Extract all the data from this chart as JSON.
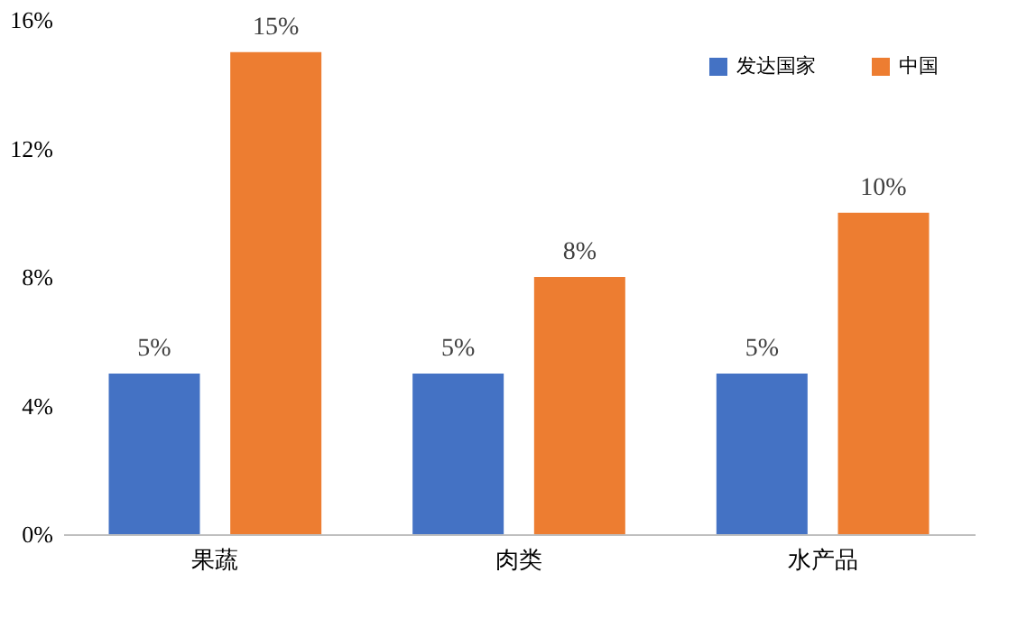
{
  "chart_data": {
    "type": "bar",
    "categories": [
      "果蔬",
      "肉类",
      "水产品"
    ],
    "series": [
      {
        "name": "发达国家",
        "color": "#4472c4",
        "values": [
          5,
          5,
          5
        ],
        "value_labels": [
          "5%",
          "5%",
          "5%"
        ]
      },
      {
        "name": "中国",
        "color": "#ed7d31",
        "values": [
          15,
          8,
          10
        ],
        "value_labels": [
          "15%",
          "8%",
          "10%"
        ]
      }
    ],
    "ylim": [
      0,
      16
    ],
    "yticks": [
      {
        "value": 0,
        "label": "0%"
      },
      {
        "value": 4,
        "label": "4%"
      },
      {
        "value": 8,
        "label": "8%"
      },
      {
        "value": 12,
        "label": "12%"
      },
      {
        "value": 16,
        "label": "16%"
      }
    ],
    "grid": false,
    "legend": "top right"
  }
}
